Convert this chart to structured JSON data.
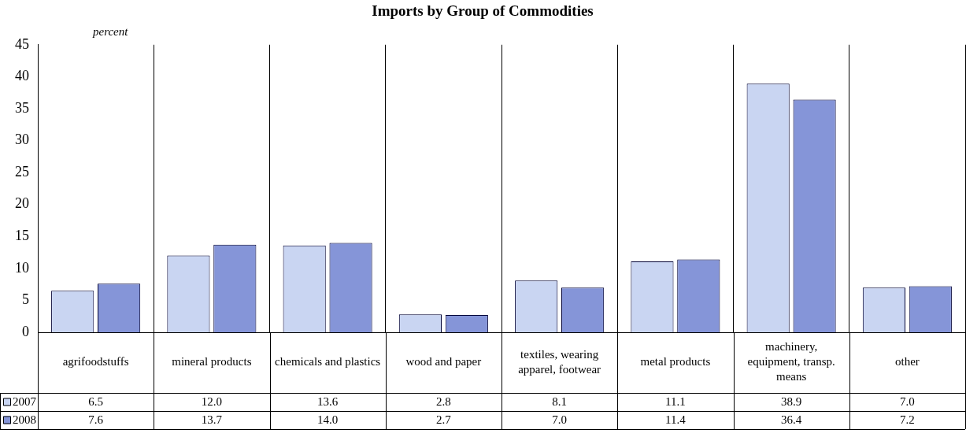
{
  "chart_data": {
    "type": "bar",
    "title": "Imports by Group of Commodities",
    "ylabel": "percent",
    "categories": [
      "agrifoodstuffs",
      "mineral products",
      "chemicals and plastics",
      "wood and paper",
      "textiles, wearing apparel, footwear",
      "metal products",
      "machinery, equipment, transp. means",
      "other"
    ],
    "series": [
      {
        "name": "2007",
        "color": "#c9d5f2",
        "values": [
          6.5,
          12.0,
          13.6,
          2.8,
          8.1,
          11.1,
          38.9,
          7.0
        ],
        "value_labels": [
          "6.5",
          "12.0",
          "13.6",
          "2.8",
          "8.1",
          "11.1",
          "38.9",
          "7.0"
        ]
      },
      {
        "name": "2008",
        "color": "#8595d8",
        "values": [
          7.6,
          13.7,
          14.0,
          2.7,
          7.0,
          11.4,
          36.4,
          7.2
        ],
        "value_labels": [
          "7.6",
          "13.7",
          "14.0",
          "2.7",
          "7.0",
          "11.4",
          "36.4",
          "7.2"
        ]
      }
    ],
    "ylim": [
      0,
      45
    ],
    "yticks": [
      0,
      5,
      10,
      15,
      20,
      25,
      30,
      35,
      40,
      45
    ],
    "grid": "x",
    "legend": "bottom"
  }
}
